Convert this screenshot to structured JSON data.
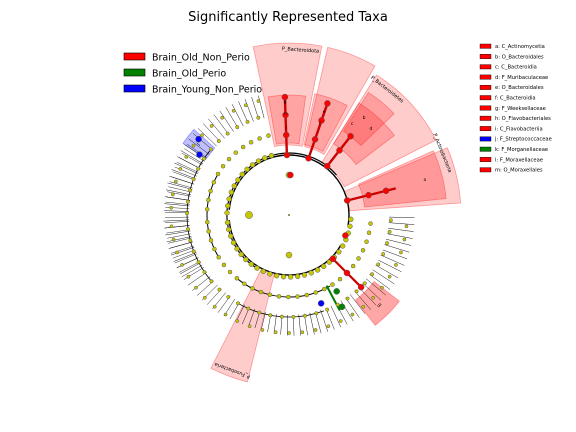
{
  "title": "Significantly Represented Taxa",
  "legend": [
    {
      "label": "Brain_Old_Non_Perio",
      "color": "#ff0000"
    },
    {
      "label": "Brain_Old_Perio",
      "color": "#008000"
    },
    {
      "label": "Brain_Young_Non_Perio",
      "color": "#0000ff"
    }
  ],
  "clade_key": [
    {
      "label": "a: C_Actinomycetia",
      "group": 0
    },
    {
      "label": "b: O_Bacteroidales",
      "group": 0
    },
    {
      "label": "c: C_Bacteroidia",
      "group": 0
    },
    {
      "label": "d: F_Muribaculaceae",
      "group": 0
    },
    {
      "label": "e: O_Bacteroidales",
      "group": 0
    },
    {
      "label": "f: C_Bacteroidia",
      "group": 0
    },
    {
      "label": "g: F_Weeksellaceae",
      "group": 0
    },
    {
      "label": "h: O_Flavobacteriales",
      "group": 0
    },
    {
      "label": "i: C_Flavobacteriia",
      "group": 0
    },
    {
      "label": "j: F_Streptococcaceae",
      "group": 2
    },
    {
      "label": "k: F_Morganellaceae",
      "group": 1
    },
    {
      "label": "l: F_Moraxellaceae",
      "group": 0
    },
    {
      "label": "m: O_Moraxellales",
      "group": 0
    }
  ],
  "highlighted_clades": [
    {
      "label": "P_Bacteroidota",
      "group": 0
    },
    {
      "label": "P_Bacteroidetes",
      "group": 0
    },
    {
      "label": "P_Actinobacteria",
      "group": 0
    },
    {
      "label": "P_Fusobacteria",
      "group": 0
    },
    {
      "label": "m",
      "group": 0
    },
    {
      "label": "j",
      "group": 2
    }
  ],
  "sector_letters": [
    {
      "label": "f",
      "group": 0
    },
    {
      "label": "e",
      "group": 0
    },
    {
      "label": "i",
      "group": 0
    },
    {
      "label": "h",
      "group": 0
    },
    {
      "label": "g",
      "group": 0
    },
    {
      "label": "d",
      "group": 0
    },
    {
      "label": "c",
      "group": 0
    },
    {
      "label": "b",
      "group": 0
    },
    {
      "label": "a",
      "group": 0
    }
  ],
  "colors": {
    "node_default": "#c8c800",
    "node_border": "#555555",
    "highlight_fill": "#ff0000",
    "branch": "#000000"
  }
}
